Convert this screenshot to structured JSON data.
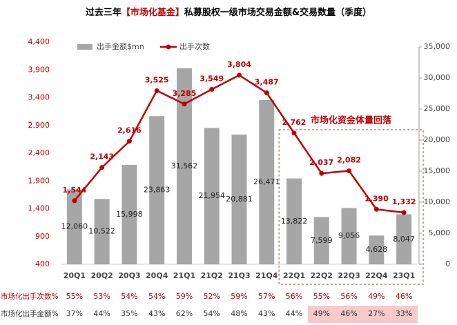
{
  "chart_data": {
    "type": "bar-line",
    "title": {
      "prefix": "过去三年",
      "highlight": "【市场化基金】",
      "suffix": "私募股权一级市场交易金额&交易数量（季度）"
    },
    "categories": [
      "20Q1",
      "20Q2",
      "20Q3",
      "20Q4",
      "21Q1",
      "21Q2",
      "21Q3",
      "21Q4",
      "22Q1",
      "22Q2",
      "22Q3",
      "22Q4",
      "23Q1"
    ],
    "series": [
      {
        "name": "出手金额$mn",
        "type": "bar",
        "axis": "y2",
        "color": "#a6a6a6",
        "values": [
          12060,
          10522,
          15998,
          23863,
          31562,
          21954,
          20881,
          26471,
          13822,
          7599,
          9056,
          4628,
          8047
        ],
        "value_labels": [
          "12,060",
          "10,522",
          "15,998",
          "23,863",
          "31,562",
          "21,954",
          "20,881",
          "26,471",
          "13,822",
          "7,599",
          "9,056",
          "4,628",
          "8,047"
        ]
      },
      {
        "name": "出手次数",
        "type": "line",
        "color": "#c00000",
        "values": [
          1544,
          2143,
          2616,
          3525,
          3285,
          3549,
          3804,
          3487,
          2762,
          2037,
          2082,
          1390,
          1332
        ],
        "value_labels": [
          "1,544",
          "2,143",
          "2,616",
          "3,525",
          "3,285",
          "3,549",
          "3,804",
          "3,487",
          "2,762",
          "2,037",
          "2,082",
          "1,390",
          "1,332"
        ]
      }
    ],
    "ylim": [
      400,
      4400
    ],
    "yticks": [
      {
        "value": 400,
        "label": "400"
      },
      {
        "value": 900,
        "label": "900"
      },
      {
        "value": 1400,
        "label": "1,400"
      },
      {
        "value": 1900,
        "label": "1,900"
      },
      {
        "value": 2400,
        "label": "2,400"
      },
      {
        "value": 2900,
        "label": "2,900"
      },
      {
        "value": 3400,
        "label": "3,400"
      },
      {
        "value": 3900,
        "label": "3,900"
      },
      {
        "value": 4400,
        "label": "4,400"
      }
    ],
    "y2lim": [
      0,
      35000
    ],
    "y2ticks": [
      0,
      {
        "value": 5000,
        "label": "5,000"
      },
      {
        "value": 10000,
        "label": "10,000"
      },
      {
        "value": 15000,
        "label": "15,000"
      },
      {
        "value": 20000,
        "label": "20,000"
      },
      {
        "value": 25000,
        "label": "25,000"
      },
      {
        "value": 30000,
        "label": "30,000"
      },
      {
        "value": 35000,
        "label": "35,000"
      }
    ],
    "annotation": {
      "text": "市场化资金体量回落",
      "from": "22Q1",
      "to": "23Q1"
    },
    "table": [
      {
        "label": "市场化出手次数%",
        "color": "#c00000",
        "cells": [
          "55%",
          "53%",
          "54%",
          "54%",
          "59%",
          "52%",
          "59%",
          "57%",
          "56%",
          "55%",
          "56%",
          "49%",
          "46%"
        ],
        "highlighted": [
          false,
          false,
          false,
          false,
          false,
          false,
          false,
          false,
          false,
          false,
          false,
          false,
          false
        ]
      },
      {
        "label": "市场化出手金额%",
        "color": "#333333",
        "cells": [
          "37%",
          "44%",
          "35%",
          "43%",
          "62%",
          "54%",
          "48%",
          "43%",
          "44%",
          "49%",
          "46%",
          "27%",
          "33%"
        ],
        "highlighted": [
          false,
          false,
          false,
          false,
          false,
          false,
          false,
          false,
          false,
          true,
          true,
          true,
          true
        ]
      }
    ]
  }
}
